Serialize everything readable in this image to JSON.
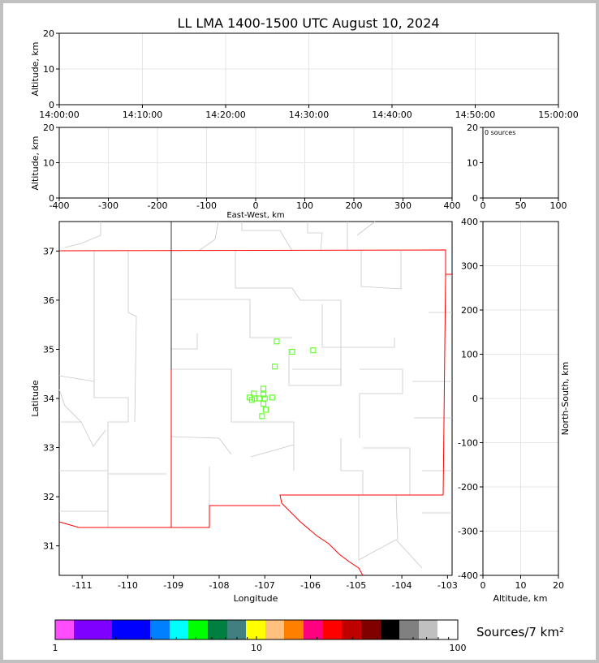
{
  "chart_data": [
    {
      "type": "scatter",
      "panel": "time-altitude",
      "title": "LL LMA 1400-1500 UTC August 10, 2024",
      "ylabel": "Altitude, km",
      "xlim": [
        "14:00:00",
        "15:00:00"
      ],
      "xticks": [
        "14:00:00",
        "14:10:00",
        "14:20:00",
        "14:30:00",
        "14:40:00",
        "14:50:00",
        "15:00:00"
      ],
      "ylim": [
        0,
        20
      ],
      "yticks": [
        0,
        10,
        20
      ],
      "grid": true,
      "points": []
    },
    {
      "type": "scatter",
      "panel": "east-west-altitude",
      "xlabel": "East-West, km",
      "ylabel": "Altitude, km",
      "xlim": [
        -400,
        400
      ],
      "xticks": [
        -400,
        -300,
        -200,
        -100,
        0,
        100,
        200,
        300,
        400
      ],
      "ylim": [
        0,
        20
      ],
      "yticks": [
        0,
        10,
        20
      ],
      "grid": true,
      "points": []
    },
    {
      "type": "histogram",
      "panel": "source-count",
      "annotation": "0 sources",
      "xlim": [
        0,
        100
      ],
      "xticks": [
        0,
        50,
        100
      ],
      "ylim": [
        0,
        20
      ],
      "yticks": [
        0,
        10,
        20
      ]
    },
    {
      "type": "scatter",
      "panel": "plan-view",
      "xlabel": "Longitude",
      "ylabel": "Latitude",
      "xlim": [
        -111.5,
        -102.9
      ],
      "xticks": [
        -111,
        -110,
        -109,
        -108,
        -107,
        -106,
        -105,
        -104,
        -103
      ],
      "ylim": [
        30.4,
        37.6
      ],
      "yticks": [
        31,
        32,
        33,
        34,
        35,
        36,
        37
      ],
      "marker_color": "#66ff33",
      "marker": "open-square",
      "points": [
        {
          "lon": -106.74,
          "lat": 35.16
        },
        {
          "lon": -106.4,
          "lat": 34.95
        },
        {
          "lon": -105.94,
          "lat": 34.98
        },
        {
          "lon": -106.78,
          "lat": 34.65
        },
        {
          "lon": -107.03,
          "lat": 34.2
        },
        {
          "lon": -107.03,
          "lat": 34.08
        },
        {
          "lon": -107.24,
          "lat": 34.1
        },
        {
          "lon": -107.33,
          "lat": 34.02
        },
        {
          "lon": -107.22,
          "lat": 34.0
        },
        {
          "lon": -107.12,
          "lat": 34.0
        },
        {
          "lon": -107.0,
          "lat": 34.0
        },
        {
          "lon": -106.84,
          "lat": 34.02
        },
        {
          "lon": -107.28,
          "lat": 33.97
        },
        {
          "lon": -107.03,
          "lat": 33.89
        },
        {
          "lon": -106.98,
          "lat": 33.77
        },
        {
          "lon": -107.06,
          "lat": 33.64
        }
      ]
    },
    {
      "type": "scatter",
      "panel": "altitude-north-south",
      "xlabel": "Altitude, km",
      "ylabel": "North-South, km",
      "xlim": [
        0,
        20
      ],
      "xticks": [
        0,
        10,
        20
      ],
      "ylim": [
        -400,
        400
      ],
      "yticks": [
        -400,
        -300,
        -200,
        -100,
        0,
        100,
        200,
        300,
        400
      ],
      "grid": true,
      "points": []
    },
    {
      "type": "colorbar",
      "label": "Sources/7 km²",
      "scale": "log",
      "range": [
        1,
        100
      ],
      "tick_labels": [
        "1",
        "10",
        "100"
      ],
      "colors": [
        "#ff4dff",
        "#8000ff",
        "#0000ff",
        "#0080ff",
        "#00ffff",
        "#00ff00",
        "#008040",
        "#408080",
        "#ffff00",
        "#ffc080",
        "#ff8000",
        "#ff0080",
        "#ff0000",
        "#c00000",
        "#800000",
        "#000000",
        "#808080",
        "#c0c0c0",
        "#ffffff"
      ]
    }
  ]
}
